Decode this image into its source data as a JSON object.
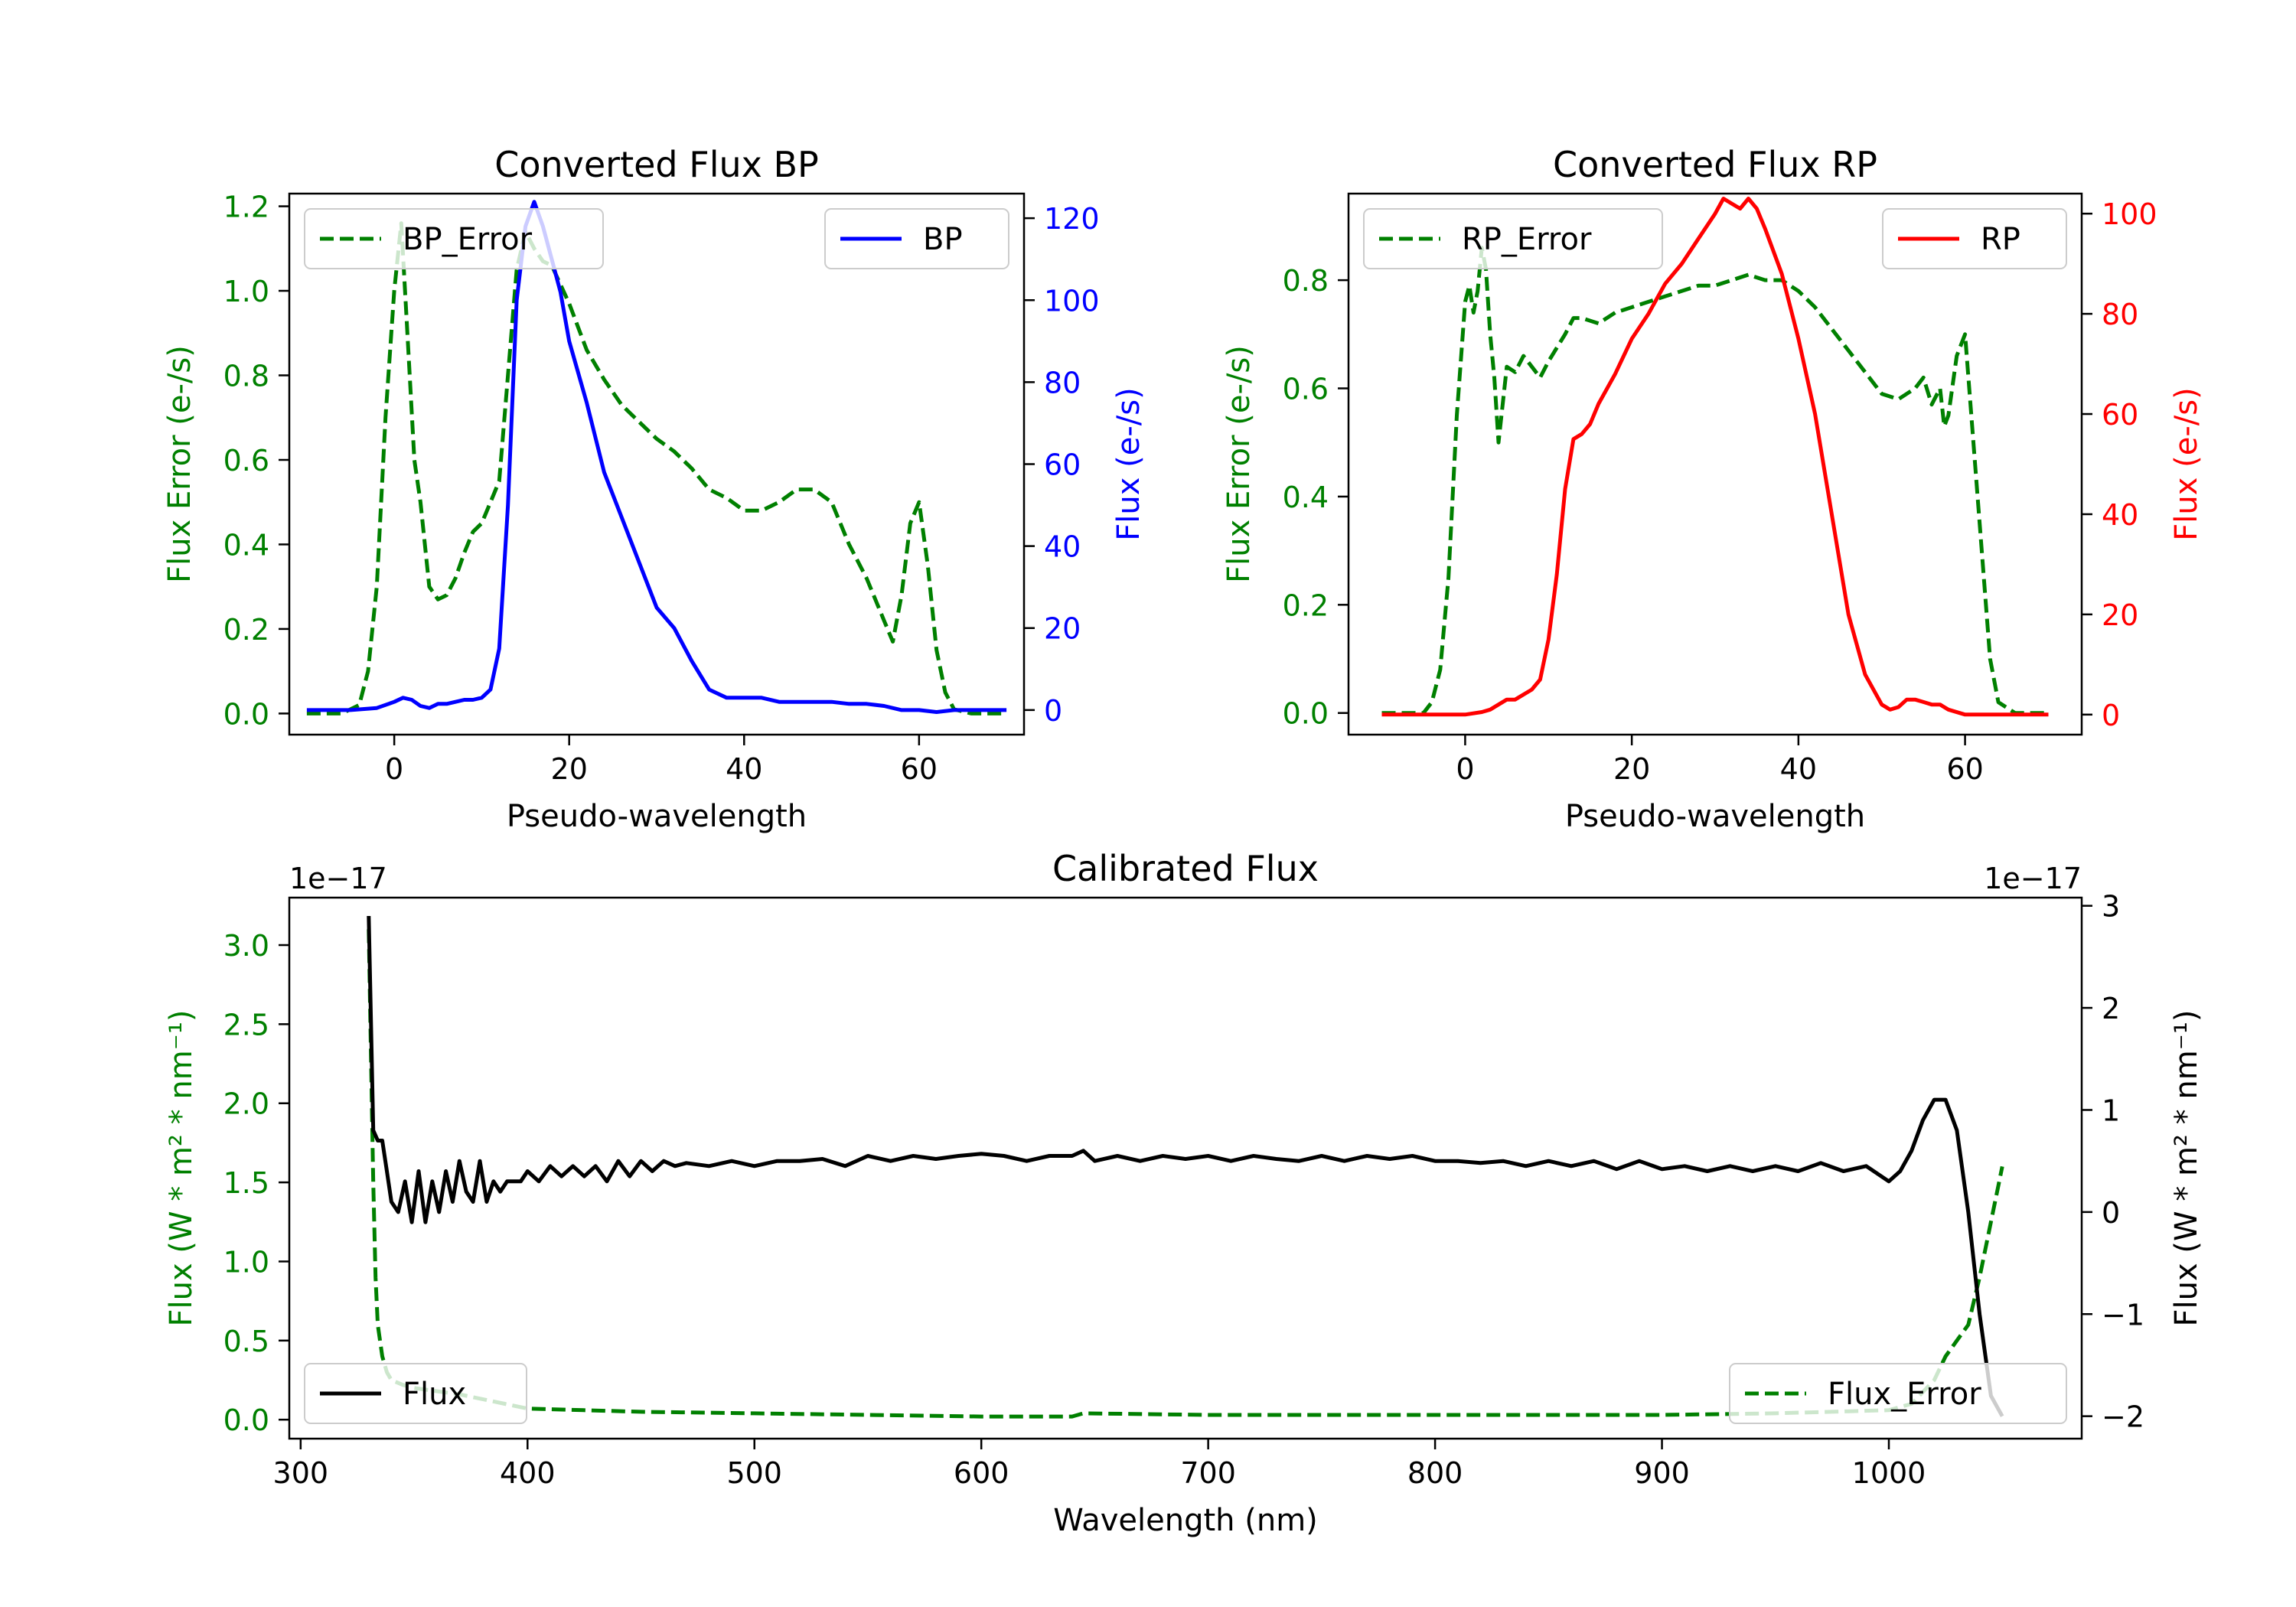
{
  "chart_data": [
    {
      "type": "line",
      "title": "Converted Flux BP",
      "xlabel": "Pseudo-wavelength",
      "xlim": [
        -12,
        72
      ],
      "xticks": [
        0,
        20,
        40,
        60
      ],
      "y_left": {
        "label": "Flux Error (e-/s)",
        "color": "#008000",
        "lim": [
          -0.05,
          1.23
        ],
        "ticks": [
          0.0,
          0.2,
          0.4,
          0.6,
          0.8,
          1.0,
          1.2
        ],
        "tick_labels": [
          "0.0",
          "0.2",
          "0.4",
          "0.6",
          "0.8",
          "1.0",
          "1.2"
        ]
      },
      "y_right": {
        "label": "Flux (e-/s)",
        "color": "#0000ff",
        "lim": [
          -6,
          126
        ],
        "ticks": [
          0,
          20,
          40,
          60,
          80,
          100,
          120
        ],
        "tick_labels": [
          "0",
          "20",
          "40",
          "60",
          "80",
          "100",
          "120"
        ]
      },
      "series": [
        {
          "name": "BP_Error",
          "axis": "left",
          "color": "#008000",
          "style": "dashed",
          "x": [
            -10,
            -6,
            -4,
            -3,
            -2,
            -1,
            0,
            0.8,
            1.5,
            2.3,
            3,
            4,
            5,
            6,
            7,
            8,
            9,
            10,
            11,
            12,
            13,
            14,
            15,
            16,
            17,
            18,
            20,
            22,
            24,
            26,
            28,
            30,
            32,
            34,
            36,
            38,
            40,
            42,
            44,
            46,
            48,
            50,
            52,
            54,
            56,
            57,
            58,
            59,
            60,
            61,
            62,
            63,
            64,
            66,
            70
          ],
          "y": [
            0.0,
            0.0,
            0.02,
            0.1,
            0.3,
            0.7,
            1.0,
            1.16,
            0.9,
            0.6,
            0.5,
            0.3,
            0.27,
            0.28,
            0.32,
            0.38,
            0.43,
            0.45,
            0.5,
            0.55,
            0.8,
            1.05,
            1.14,
            1.1,
            1.07,
            1.06,
            0.97,
            0.86,
            0.79,
            0.73,
            0.69,
            0.65,
            0.62,
            0.58,
            0.53,
            0.51,
            0.48,
            0.48,
            0.5,
            0.53,
            0.53,
            0.5,
            0.4,
            0.32,
            0.22,
            0.17,
            0.28,
            0.45,
            0.5,
            0.35,
            0.15,
            0.05,
            0.01,
            0.0,
            0.0
          ]
        },
        {
          "name": "BP",
          "axis": "right",
          "color": "#0000ff",
          "style": "solid",
          "x": [
            -10,
            -5,
            -2,
            0,
            1,
            2,
            3,
            4,
            5,
            6,
            7,
            8,
            9,
            10,
            11,
            12,
            13,
            14,
            15,
            16,
            17,
            18,
            19,
            20,
            22,
            24,
            26,
            28,
            30,
            32,
            34,
            36,
            38,
            40,
            42,
            44,
            46,
            48,
            50,
            52,
            54,
            56,
            58,
            60,
            62,
            64,
            66,
            68,
            70
          ],
          "y": [
            0,
            0,
            0.5,
            2,
            3,
            2.5,
            1,
            0.5,
            1.5,
            1.5,
            2,
            2.5,
            2.5,
            3,
            5,
            15,
            50,
            100,
            118,
            124,
            118,
            110,
            102,
            90,
            75,
            58,
            47,
            36,
            25,
            20,
            12,
            5,
            3,
            3,
            3,
            2,
            2,
            2,
            2,
            1.5,
            1.5,
            1,
            0,
            0,
            -0.5,
            0,
            0,
            0,
            0
          ]
        }
      ],
      "legends": [
        {
          "position": "upper-left",
          "entries": [
            "BP_Error"
          ]
        },
        {
          "position": "upper-right",
          "entries": [
            "BP"
          ]
        }
      ]
    },
    {
      "type": "line",
      "title": "Converted Flux RP",
      "xlabel": "Pseudo-wavelength",
      "xlim": [
        -14,
        74
      ],
      "xticks": [
        0,
        20,
        40,
        60
      ],
      "y_left": {
        "label": "Flux Error (e-/s)",
        "color": "#008000",
        "lim": [
          -0.04,
          0.96
        ],
        "ticks": [
          0.0,
          0.2,
          0.4,
          0.6,
          0.8
        ],
        "tick_labels": [
          "0.0",
          "0.2",
          "0.4",
          "0.6",
          "0.8"
        ]
      },
      "y_right": {
        "label": "Flux (e-/s)",
        "color": "#ff0000",
        "lim": [
          -4,
          104
        ],
        "ticks": [
          0,
          20,
          40,
          60,
          80,
          100
        ],
        "tick_labels": [
          "0",
          "20",
          "40",
          "60",
          "80",
          "100"
        ]
      },
      "series": [
        {
          "name": "RP_Error",
          "axis": "left",
          "color": "#008000",
          "style": "dashed",
          "x": [
            -10,
            -5,
            -4,
            -3,
            -2,
            -1,
            0,
            0.5,
            1,
            1.5,
            2,
            2.5,
            3,
            3.5,
            4,
            5,
            6,
            7,
            8,
            9,
            10,
            12,
            13,
            14,
            16,
            18,
            20,
            22,
            24,
            26,
            28,
            30,
            32,
            34,
            36,
            38,
            40,
            42,
            44,
            46,
            48,
            50,
            52,
            54,
            55,
            56,
            57,
            57.5,
            58,
            59,
            60,
            61,
            62,
            63,
            64,
            66,
            70
          ],
          "y": [
            0.0,
            0.0,
            0.02,
            0.08,
            0.25,
            0.55,
            0.76,
            0.79,
            0.74,
            0.78,
            0.86,
            0.82,
            0.7,
            0.62,
            0.5,
            0.64,
            0.63,
            0.66,
            0.64,
            0.62,
            0.65,
            0.7,
            0.73,
            0.73,
            0.72,
            0.74,
            0.75,
            0.76,
            0.77,
            0.78,
            0.79,
            0.79,
            0.8,
            0.81,
            0.8,
            0.8,
            0.78,
            0.75,
            0.71,
            0.67,
            0.63,
            0.59,
            0.58,
            0.6,
            0.62,
            0.57,
            0.6,
            0.53,
            0.55,
            0.66,
            0.7,
            0.5,
            0.3,
            0.1,
            0.02,
            0.0,
            0.0
          ]
        },
        {
          "name": "RP",
          "axis": "right",
          "color": "#ff0000",
          "style": "solid",
          "x": [
            -10,
            -5,
            0,
            2,
            3,
            4,
            5,
            6,
            8,
            9,
            10,
            11,
            12,
            13,
            14,
            15,
            16,
            18,
            20,
            22,
            24,
            26,
            28,
            30,
            31,
            32,
            33,
            34,
            35,
            36,
            38,
            40,
            42,
            44,
            46,
            48,
            50,
            51,
            52,
            53,
            54,
            55,
            56,
            57,
            58,
            60,
            62,
            64,
            66,
            70
          ],
          "y": [
            0,
            0,
            0,
            0.5,
            1,
            2,
            3,
            3,
            5,
            7,
            15,
            28,
            45,
            55,
            56,
            58,
            62,
            68,
            75,
            80,
            86,
            90,
            95,
            100,
            103,
            102,
            101,
            103,
            101,
            97,
            88,
            75,
            60,
            40,
            20,
            8,
            2,
            1,
            1.5,
            3,
            3,
            2.5,
            2,
            2,
            1,
            0,
            0,
            0,
            0,
            0
          ]
        }
      ],
      "legends": [
        {
          "position": "upper-left",
          "entries": [
            "RP_Error"
          ]
        },
        {
          "position": "upper-right",
          "entries": [
            "RP"
          ]
        }
      ]
    },
    {
      "type": "line",
      "title": "Calibrated Flux",
      "xlabel": "Wavelength (nm)",
      "xlim": [
        295,
        1085
      ],
      "xticks": [
        300,
        400,
        500,
        600,
        700,
        800,
        900,
        1000
      ],
      "y_left": {
        "label": "Flux (W * m² * nm⁻¹)",
        "color": "#008000",
        "offset_text": "1e−17",
        "lim": [
          -0.12,
          3.3
        ],
        "ticks": [
          0.0,
          0.5,
          1.0,
          1.5,
          2.0,
          2.5,
          3.0
        ],
        "tick_labels": [
          "0.0",
          "0.5",
          "1.0",
          "1.5",
          "2.0",
          "2.5",
          "3.0"
        ]
      },
      "y_right": {
        "label": "Flux (W * m² * nm⁻¹)",
        "color": "#000000",
        "offset_text": "1e−17",
        "lim": [
          -2.22,
          3.08
        ],
        "ticks": [
          -2,
          -1,
          0,
          1,
          2,
          3
        ],
        "tick_labels": [
          "−2",
          "−1",
          "0",
          "1",
          "2",
          "3"
        ]
      },
      "series": [
        {
          "name": "Flux_Error",
          "axis": "left",
          "color": "#008000",
          "style": "dashed",
          "x": [
            330,
            331,
            332,
            333,
            334,
            336,
            338,
            340,
            345,
            350,
            360,
            370,
            380,
            390,
            400,
            450,
            500,
            600,
            640,
            645,
            700,
            800,
            900,
            950,
            1000,
            1010,
            1020,
            1025,
            1030,
            1035,
            1040,
            1045,
            1050
          ],
          "y": [
            3.1,
            2.3,
            1.5,
            0.9,
            0.6,
            0.4,
            0.3,
            0.25,
            0.22,
            0.2,
            0.18,
            0.16,
            0.13,
            0.1,
            0.07,
            0.05,
            0.04,
            0.02,
            0.02,
            0.04,
            0.03,
            0.03,
            0.03,
            0.04,
            0.06,
            0.1,
            0.25,
            0.4,
            0.5,
            0.6,
            0.9,
            1.25,
            1.6
          ]
        },
        {
          "name": "Flux",
          "axis": "right",
          "color": "#000000",
          "style": "solid",
          "x": [
            330,
            332,
            334,
            336,
            338,
            340,
            343,
            346,
            349,
            352,
            355,
            358,
            361,
            364,
            367,
            370,
            373,
            376,
            379,
            382,
            385,
            388,
            391,
            394,
            397,
            400,
            405,
            410,
            415,
            420,
            425,
            430,
            435,
            440,
            445,
            450,
            455,
            460,
            465,
            470,
            480,
            490,
            500,
            510,
            520,
            530,
            540,
            550,
            560,
            570,
            580,
            590,
            600,
            610,
            620,
            630,
            640,
            645,
            650,
            660,
            670,
            680,
            690,
            700,
            710,
            720,
            730,
            740,
            750,
            760,
            770,
            780,
            790,
            800,
            810,
            820,
            830,
            840,
            850,
            860,
            870,
            880,
            890,
            900,
            910,
            920,
            930,
            940,
            950,
            960,
            970,
            980,
            990,
            1000,
            1005,
            1010,
            1015,
            1020,
            1025,
            1030,
            1035,
            1040,
            1045,
            1050
          ],
          "y": [
            2.9,
            0.8,
            0.7,
            0.7,
            0.4,
            0.1,
            0.0,
            0.3,
            -0.1,
            0.4,
            -0.1,
            0.3,
            0.0,
            0.4,
            0.1,
            0.5,
            0.2,
            0.1,
            0.5,
            0.1,
            0.3,
            0.2,
            0.3,
            0.3,
            0.3,
            0.4,
            0.3,
            0.45,
            0.35,
            0.45,
            0.35,
            0.45,
            0.3,
            0.5,
            0.35,
            0.5,
            0.4,
            0.5,
            0.45,
            0.48,
            0.45,
            0.5,
            0.45,
            0.5,
            0.5,
            0.52,
            0.45,
            0.55,
            0.5,
            0.55,
            0.52,
            0.55,
            0.57,
            0.55,
            0.5,
            0.55,
            0.55,
            0.6,
            0.5,
            0.55,
            0.5,
            0.55,
            0.52,
            0.55,
            0.5,
            0.55,
            0.52,
            0.5,
            0.55,
            0.5,
            0.55,
            0.52,
            0.55,
            0.5,
            0.5,
            0.48,
            0.5,
            0.45,
            0.5,
            0.45,
            0.5,
            0.42,
            0.5,
            0.42,
            0.45,
            0.4,
            0.45,
            0.4,
            0.45,
            0.4,
            0.48,
            0.4,
            0.45,
            0.3,
            0.4,
            0.6,
            0.9,
            1.1,
            1.1,
            0.8,
            0.0,
            -1.0,
            -1.8,
            -2.0
          ]
        }
      ],
      "legends": [
        {
          "position": "lower-left",
          "entries": [
            "Flux"
          ]
        },
        {
          "position": "lower-right",
          "entries": [
            "Flux_Error"
          ]
        }
      ]
    }
  ]
}
